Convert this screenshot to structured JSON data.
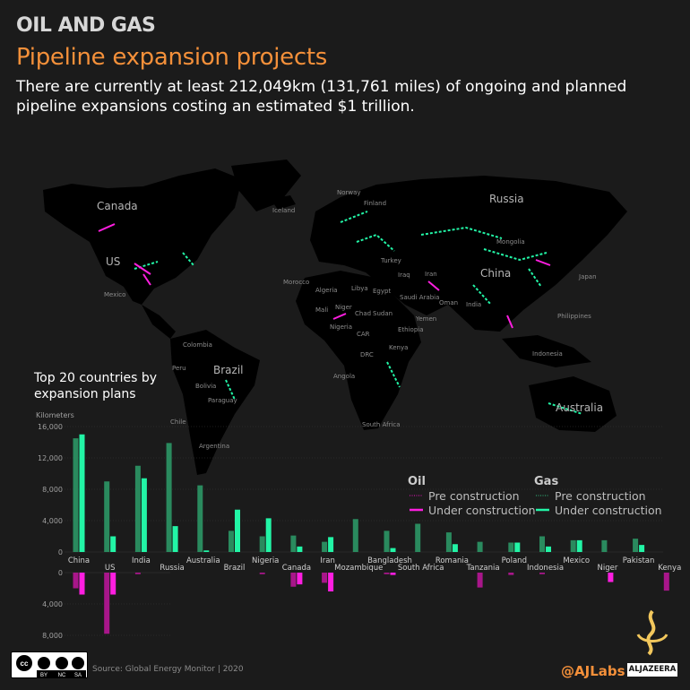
{
  "header": {
    "kicker": "OIL AND GAS",
    "title": "Pipeline expansion projects",
    "subtitle": "There are currently at least 212,049km (131,761 miles) of ongoing and planned pipeline expansions costing an estimated $1 trillion."
  },
  "map": {
    "labels": [
      "Canada",
      "US",
      "Mexico",
      "Iceland",
      "Norway",
      "Finland",
      "Russia",
      "Mongolia",
      "China",
      "Japan",
      "Philippines",
      "Indonesia",
      "Australia",
      "Turkey",
      "Iran",
      "Iraq",
      "Saudi Arabia",
      "Oman",
      "Yemen",
      "Egypt",
      "Libya",
      "Algeria",
      "Morocco",
      "Mali",
      "Niger",
      "Chad",
      "Sudan",
      "Ethiopia",
      "Kenya",
      "Nigeria",
      "CAR",
      "DRC",
      "Angola",
      "South Africa",
      "India",
      "Colombia",
      "Peru",
      "Bolivia",
      "Brazil",
      "Paraguay",
      "Chile",
      "Argentina"
    ]
  },
  "chart_data": {
    "type": "bar",
    "title": "Top 20 countries by expansion plans",
    "ylabel": "Kilometers",
    "ylim_gas": [
      0,
      16000
    ],
    "ylim_oil": [
      0,
      8000
    ],
    "categories": [
      "China",
      "US",
      "India",
      "Russia",
      "Australia",
      "Brazil",
      "Nigeria",
      "Canada",
      "Iran",
      "Mozambique",
      "Bangladesh",
      "South Africa",
      "Romania",
      "Tanzania",
      "Poland",
      "Indonesia",
      "Mexico",
      "Niger",
      "Pakistan",
      "Kenya"
    ],
    "series": [
      {
        "name": "Pre construction",
        "group": "Gas",
        "values": [
          14500,
          9000,
          11000,
          13900,
          8500,
          2700,
          2000,
          2100,
          1300,
          4200,
          2700,
          3600,
          2500,
          1300,
          1200,
          2000,
          1500,
          1500,
          1700,
          0
        ]
      },
      {
        "name": "Under construction",
        "group": "Gas",
        "values": [
          15000,
          2000,
          9400,
          3300,
          200,
          5400,
          4300,
          700,
          1900,
          0,
          500,
          0,
          1000,
          0,
          1200,
          700,
          1500,
          0,
          900,
          0
        ]
      },
      {
        "name": "Pre construction",
        "group": "Oil",
        "values": [
          2000,
          7800,
          200,
          0,
          0,
          0,
          200,
          1800,
          1300,
          0,
          200,
          0,
          0,
          1900,
          300,
          200,
          0,
          0,
          0,
          2300
        ]
      },
      {
        "name": "Under construction",
        "group": "Oil",
        "values": [
          2800,
          2800,
          0,
          0,
          0,
          0,
          0,
          1500,
          2400,
          0,
          300,
          0,
          0,
          0,
          0,
          0,
          0,
          1200,
          0,
          0
        ]
      }
    ],
    "gas_ticks": [
      "16,000",
      "12,000",
      "8,000",
      "4,000",
      "0"
    ],
    "oil_ticks": [
      "0",
      "4,000",
      "8,000"
    ],
    "legend": {
      "oil_title": "Oil",
      "gas_title": "Gas",
      "pre": "Pre construction",
      "under": "Under construction"
    },
    "colors": {
      "gas_pre": "#2a8a5e",
      "gas_under": "#22f5a6",
      "oil_pre": "#a8168a",
      "oil_under": "#ff1ee0"
    }
  },
  "footer": {
    "source": "Source: Global Energy Monitor | 2020",
    "handle": "@AJLabs",
    "brand": "ALJAZEERA",
    "license_tags": [
      "BY",
      "NC",
      "SA"
    ]
  }
}
